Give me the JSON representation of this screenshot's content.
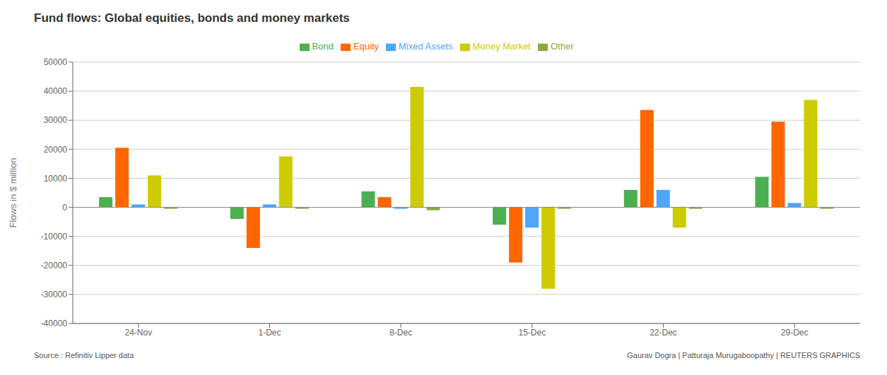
{
  "chart_data": {
    "type": "bar",
    "title": "Fund flows: Global equities, bonds and money markets",
    "ylabel": "Flows in $ million",
    "annotations": [
      "Source : Refinitiv Lipper data",
      "Gaurav Dogra | Patturaja Murugaboopathy | REUTERS GRAPHICS"
    ],
    "categories": [
      "24-Nov",
      "1-Dec",
      "8-Dec",
      "15-Dec",
      "22-Dec",
      "29-Dec"
    ],
    "series": [
      {
        "name": "Bond",
        "color": "#4caf50",
        "values": [
          3500,
          -4000,
          5500,
          -6000,
          6000,
          10500
        ]
      },
      {
        "name": "Equity",
        "color": "#ff6600",
        "values": [
          20500,
          -14000,
          3500,
          -19000,
          33500,
          29500
        ]
      },
      {
        "name": "Mixed Assets",
        "color": "#4da6ff",
        "values": [
          1000,
          1000,
          -500,
          -7000,
          6000,
          1500
        ]
      },
      {
        "name": "Money Market",
        "color": "#cccc00",
        "values": [
          11000,
          17500,
          41500,
          -28000,
          -7000,
          37000
        ]
      },
      {
        "name": "Other",
        "color": "#88aa44",
        "values": [
          -500,
          -500,
          -1000,
          -500,
          -500,
          -500
        ]
      }
    ],
    "ylim": [
      -40000,
      50000
    ],
    "yticks": [
      -40000,
      -30000,
      -20000,
      -10000,
      0,
      10000,
      20000,
      30000,
      40000,
      50000
    ],
    "grid": true,
    "legend": "top"
  }
}
